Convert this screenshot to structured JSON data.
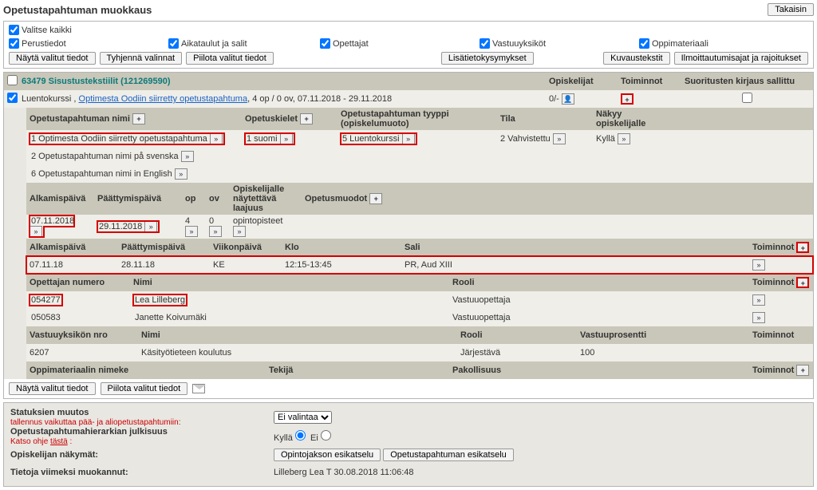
{
  "title": "Opetustapahtuman muokkaus",
  "back_btn": "Takaisin",
  "filter": {
    "all": "Valitse kaikki",
    "perus": "Perustiedot",
    "aika": "Aikataulut ja salit",
    "opet": "Opettajat",
    "vast": "Vastuuyksiköt",
    "oppi": "Oppimateriaali",
    "b1": "Näytä valitut tiedot",
    "b2": "Tyhjennä valinnat",
    "b3": "Piilota valitut tiedot",
    "lisat": "Lisätietokysymykset",
    "kuv": "Kuvaustekstit",
    "ilm": "Ilmoittautumisajat ja rajoitukset"
  },
  "course": {
    "code": "63479",
    "name": "Sisustustekstiilit",
    "paren": "(121269590)",
    "op_hdr": "Opiskelijat",
    "toim_hdr": "Toiminnot",
    "suor_hdr": "Suoritusten kirjaus sallittu",
    "line2_pre": "Luentokurssi ,",
    "line2_link": "Optimesta Oodiin siirretty opetustapahtuma",
    "line2_tail": ", 4 op / 0 ov, 07.11.2018 - 29.11.2018",
    "op_val": "0/-"
  },
  "names_hdr": {
    "a": "Opetustapahtuman nimi",
    "b": "Opetuskielet",
    "c": "Opetustapahtuman tyyppi (opiskelumuoto)",
    "d": "Tila",
    "e": "Näkyy opiskelijalle"
  },
  "names": [
    {
      "n": "1",
      "a": "Optimesta Oodiin siirretty opetustapahtuma",
      "b": "1 suomi",
      "c": "5 Luentokurssi",
      "d": "2 Vahvistettu",
      "e": "Kyllä",
      "red": true
    },
    {
      "n": "2",
      "a": "Opetustapahtuman nimi på svenska"
    },
    {
      "n": "6",
      "a": "Opetustapahtuman nimi in English"
    }
  ],
  "dates_hdr": {
    "a": "Alkamispäivä",
    "b": "Päättymispäivä",
    "c": "op",
    "d": "ov",
    "e": "Opiskelijalle näytettävä laajuus",
    "f": "Opetusmuodot"
  },
  "dates": {
    "a": "07.11.2018",
    "b": "29.11.2018",
    "c": "4",
    "d": "0",
    "e": "opintopisteet"
  },
  "sched_hdr": {
    "a": "Alkamispäivä",
    "b": "Päättymispäivä",
    "c": "Viikonpäivä",
    "d": "Klo",
    "e": "Sali",
    "f": "Toiminnot"
  },
  "sched": {
    "a": "07.11.18",
    "b": "28.11.18",
    "c": "KE",
    "d": "12:15-13:45",
    "e": "PR, Aud XIII"
  },
  "teach_hdr": {
    "a": "Opettajan numero",
    "b": "Nimi",
    "c": "Rooli",
    "d": "Toiminnot"
  },
  "teach": [
    {
      "a": "054277",
      "b": "Lea Lilleberg",
      "c": "Vastuuopettaja"
    },
    {
      "a": "050583",
      "b": "Janette Koivumäki",
      "c": "Vastuuopettaja"
    }
  ],
  "unit_hdr": {
    "a": "Vastuuyksikön nro",
    "b": "Nimi",
    "c": "Rooli",
    "d": "Vastuuprosentti",
    "e": "Toiminnot"
  },
  "unit": {
    "a": "6207",
    "b": "Käsityötieteen koulutus",
    "c": "Järjestävä",
    "d": "100"
  },
  "mat_hdr": {
    "a": "Oppimateriaalin nimeke",
    "b": "Tekijä",
    "c": "Pakollisuus",
    "d": "Toiminnot"
  },
  "bottom": {
    "b1": "Näytä valitut tiedot",
    "b2": "Piilota valitut tiedot"
  },
  "foot": {
    "status": "Statuksien muutos",
    "status_sub": "tallennus vaikuttaa pää- ja aliopetustapahtumiin:",
    "sel": "Ei valintaa",
    "hier": "Opetustapahtumahierarkian julkisuus",
    "hier_sub": "Katso ohje ",
    "hier_link": "tästä",
    "kyl": "Kyllä",
    "ei": "Ei",
    "nak": "Opiskelijan näkymät:",
    "b1": "Opintojakson esikatselu",
    "b2": "Opetustapahtuman esikatselu",
    "viim": "Tietoja viimeksi muokannut:",
    "viim_val": "Lilleberg Lea T 30.08.2018 11:06:48"
  }
}
